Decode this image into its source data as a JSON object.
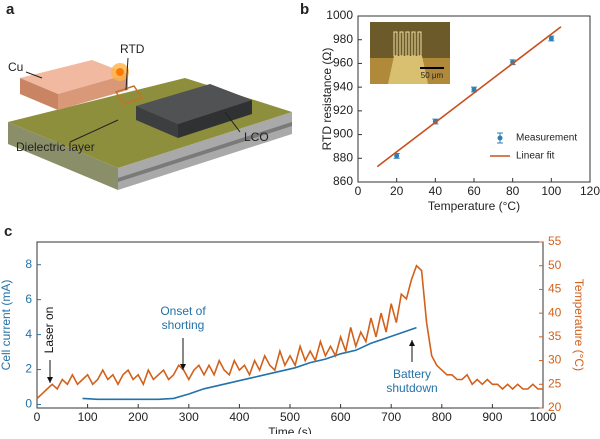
{
  "diagram": {
    "panel_label": "a",
    "labels": [
      "Cu",
      "RTD",
      "LCO",
      "Dielectric layer"
    ]
  },
  "chart_data": [
    {
      "type": "scatter",
      "panel_label": "b",
      "x_label": "Temperature (°C)",
      "y_label": "RTD resistance (Ω)",
      "xlim": [
        0,
        120
      ],
      "xticks": [
        0,
        20,
        40,
        60,
        80,
        100,
        120
      ],
      "ylim": [
        860,
        1000
      ],
      "yticks": [
        860,
        880,
        900,
        920,
        940,
        960,
        980,
        1000
      ],
      "inset_scale": "50 μm",
      "legend": "lower right",
      "series": [
        {
          "name": "Measurement",
          "color": "#2f7fb5",
          "x": [
            20,
            40,
            60,
            80,
            100
          ],
          "values": [
            882,
            911,
            938,
            961,
            981
          ],
          "errors": [
            2,
            2,
            2,
            2,
            2
          ]
        },
        {
          "name": "Linear fit",
          "color": "#c8501e",
          "x": [
            10,
            105
          ],
          "values": [
            873,
            991
          ]
        }
      ]
    },
    {
      "type": "line",
      "panel_label": "c",
      "x_label": "Time (s)",
      "y_label": "Cell current (mA)",
      "y2_label": "Temperature (°C)",
      "xlim": [
        0,
        1000
      ],
      "xticks": [
        0,
        100,
        200,
        300,
        400,
        500,
        600,
        700,
        800,
        900,
        1000
      ],
      "ylim": [
        -0.2,
        9.3
      ],
      "yticks": [
        0,
        2,
        4,
        6,
        8
      ],
      "y2lim": [
        20,
        55
      ],
      "y2ticks": [
        20,
        25,
        30,
        35,
        40,
        45,
        50,
        55
      ],
      "annotations": [
        [
          "Laser on"
        ],
        [
          "Onset of",
          "shorting"
        ],
        [
          "Battery",
          "shutdown"
        ]
      ],
      "series": [
        {
          "name": "Cell current",
          "color": "#2372a8",
          "axis": "y",
          "x": [
            90,
            120,
            150,
            180,
            210,
            240,
            270,
            300,
            330,
            360,
            390,
            420,
            450,
            480,
            510,
            540,
            570,
            600,
            630,
            660,
            690,
            720,
            750
          ],
          "values": [
            0.35,
            0.3,
            0.3,
            0.3,
            0.3,
            0.3,
            0.35,
            0.6,
            0.9,
            1.1,
            1.3,
            1.5,
            1.7,
            1.9,
            2.1,
            2.4,
            2.6,
            2.9,
            3.1,
            3.5,
            3.8,
            4.1,
            4.4
          ]
        },
        {
          "name": "Temperature",
          "color": "#d2611c",
          "axis": "y2",
          "x": [
            0,
            10,
            20,
            30,
            40,
            50,
            60,
            70,
            80,
            90,
            100,
            110,
            120,
            130,
            140,
            150,
            160,
            170,
            180,
            190,
            200,
            210,
            220,
            230,
            240,
            250,
            260,
            270,
            280,
            290,
            300,
            310,
            320,
            330,
            340,
            350,
            360,
            370,
            380,
            390,
            400,
            410,
            420,
            430,
            440,
            450,
            460,
            470,
            480,
            490,
            500,
            510,
            520,
            530,
            540,
            550,
            560,
            570,
            580,
            590,
            600,
            610,
            620,
            630,
            640,
            650,
            660,
            670,
            680,
            690,
            700,
            710,
            720,
            730,
            740,
            750,
            760,
            770,
            780,
            790,
            800,
            810,
            820,
            830,
            840,
            850,
            860,
            870,
            880,
            890,
            900,
            910,
            920,
            930,
            940,
            950,
            960,
            970,
            980,
            990,
            1000
          ],
          "values": [
            22,
            23,
            24,
            25,
            24,
            26,
            25,
            27,
            25,
            26,
            27,
            25,
            26,
            28,
            26,
            27,
            25,
            27,
            28,
            26,
            27,
            25,
            28,
            26,
            27,
            28,
            26,
            27,
            29,
            28,
            26,
            28,
            29,
            27,
            29,
            27,
            30,
            28,
            27,
            30,
            28,
            29,
            27,
            30,
            28,
            31,
            29,
            28,
            32,
            29,
            31,
            29,
            33,
            30,
            32,
            30,
            34,
            31,
            33,
            31,
            35,
            32,
            37,
            33,
            36,
            34,
            39,
            35,
            40,
            36,
            42,
            38,
            44,
            43,
            47,
            50,
            49,
            38,
            31,
            29,
            28,
            27,
            27,
            26,
            26,
            27,
            25,
            26,
            25,
            26,
            25,
            25,
            24,
            25,
            24,
            25,
            24,
            24,
            25,
            24,
            24
          ]
        }
      ]
    }
  ]
}
